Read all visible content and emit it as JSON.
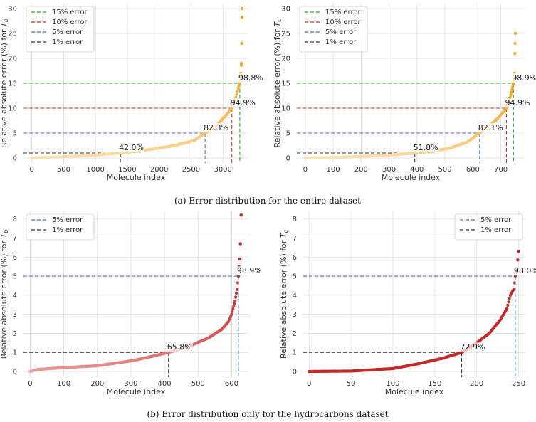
{
  "captions": {
    "a": "(a) Error distribution for the entire dataset",
    "b": "(b) Error distribution only for the hydrocarbons dataset"
  },
  "colors": {
    "err15": "#2ca02c",
    "err10": "#d62728",
    "err5": "#4c72b0",
    "err1": "#333333",
    "grid": "#dcdcdc",
    "orange_dark": "#f5a623",
    "orange_light": "#fbe3b8",
    "red_dark": "#c62828",
    "red_light": "#f1a3a3"
  },
  "chart_data": [
    {
      "id": "a-left",
      "type": "scatter",
      "panel": "top-left",
      "xlabel": "Molecule index",
      "ylabel": "Relative absolute error (%) for T_b",
      "ylabel_parts": [
        "Relative absolute error (%) for ",
        "T",
        "b"
      ],
      "xlim": [
        -130,
        3400
      ],
      "ylim": [
        -1,
        31
      ],
      "xticks": [
        0,
        500,
        1000,
        1500,
        2000,
        2500,
        3000
      ],
      "yticks": [
        0,
        5,
        10,
        15,
        20,
        25,
        30
      ],
      "legend_position": "top-left",
      "legend": [
        "15% error",
        "10% error",
        "5% error",
        "1% error"
      ],
      "series": [
        {
          "color_from": "orange_light",
          "color_to": "orange_dark",
          "n": 3300,
          "points_x": [
            0,
            500,
            1000,
            1390,
            1800,
            2200,
            2550,
            2720,
            2900,
            3050,
            3140,
            3200,
            3240,
            3265,
            3280,
            3290,
            3296,
            3300
          ],
          "points_y": [
            0,
            0.25,
            0.6,
            1.0,
            1.6,
            2.4,
            3.5,
            5.0,
            6.6,
            8.6,
            10.0,
            12.0,
            14.0,
            15.0,
            17.0,
            19.0,
            23.0,
            30.0
          ]
        }
      ],
      "thresholds": [
        {
          "error": 15,
          "x": 3265,
          "label": "98.8%",
          "style": "err15"
        },
        {
          "error": 10,
          "x": 3140,
          "label": "94.9%",
          "style": "err10"
        },
        {
          "error": 5,
          "x": 2720,
          "label": "82.3%",
          "style": "err5"
        },
        {
          "error": 1,
          "x": 1390,
          "label": "42.0%",
          "style": "err1"
        }
      ]
    },
    {
      "id": "a-right",
      "type": "scatter",
      "panel": "top-right",
      "xlabel": "Molecule index",
      "ylabel": "Relative absolute error (%) for T_c",
      "ylabel_parts": [
        "Relative absolute error (%) for ",
        "T",
        "c"
      ],
      "xlim": [
        -30,
        785
      ],
      "ylim": [
        -1,
        31
      ],
      "xticks": [
        0,
        100,
        200,
        300,
        400,
        500,
        600,
        700
      ],
      "yticks": [
        0,
        5,
        10,
        15,
        20,
        25,
        30
      ],
      "legend_position": "top-left",
      "legend": [
        "15% error",
        "10% error",
        "5% error",
        "1% error"
      ],
      "series": [
        {
          "color_from": "orange_light",
          "color_to": "orange_dark",
          "n": 752,
          "points_x": [
            0,
            100,
            200,
            300,
            392,
            450,
            520,
            580,
            624,
            660,
            690,
            720,
            735,
            745,
            748,
            750,
            752
          ],
          "points_y": [
            0,
            0.1,
            0.3,
            0.6,
            1.0,
            1.3,
            2.0,
            3.2,
            5.0,
            6.5,
            8.0,
            10.0,
            12.5,
            15.0,
            17.0,
            21.0,
            25.0
          ]
        }
      ],
      "thresholds": [
        {
          "error": 15,
          "x": 745,
          "label": "98.9%",
          "style": "err15"
        },
        {
          "error": 10,
          "x": 720,
          "label": "94.9%",
          "style": "err10"
        },
        {
          "error": 5,
          "x": 624,
          "label": "82.1%",
          "style": "err5"
        },
        {
          "error": 1,
          "x": 392,
          "label": "51.8%",
          "style": "err1"
        }
      ]
    },
    {
      "id": "b-left",
      "type": "scatter",
      "panel": "bottom-left",
      "xlabel": "Molecule index",
      "ylabel": "Relative absolute error (%) for T_b",
      "ylabel_parts": [
        "Relative absolute error (%) for ",
        "T",
        "b"
      ],
      "xlim": [
        -20,
        650
      ],
      "ylim": [
        -0.3,
        8.4
      ],
      "xticks": [
        0,
        100,
        200,
        300,
        400,
        500,
        600
      ],
      "yticks": [
        0,
        1,
        2,
        3,
        4,
        5,
        6,
        7,
        8
      ],
      "legend_position": "top-left",
      "legend": [
        "5% error",
        "1% error"
      ],
      "series": [
        {
          "color_from": "red_light",
          "color_to": "red_dark",
          "n": 630,
          "points_x": [
            0,
            20,
            100,
            200,
            300,
            360,
            412,
            470,
            530,
            570,
            590,
            600,
            610,
            616,
            620,
            622,
            624,
            626,
            628
          ],
          "points_y": [
            0,
            0.1,
            0.2,
            0.3,
            0.55,
            0.78,
            1.0,
            1.3,
            1.75,
            2.2,
            2.6,
            3.0,
            3.7,
            4.3,
            5.0,
            5.5,
            5.9,
            6.7,
            8.2
          ]
        }
      ],
      "thresholds": [
        {
          "error": 5,
          "x": 620,
          "label": "98.9%",
          "style": "err5"
        },
        {
          "error": 1,
          "x": 412,
          "label": "65.8%",
          "style": "err1"
        }
      ]
    },
    {
      "id": "b-right",
      "type": "scatter",
      "panel": "bottom-right",
      "xlabel": "Molecule index",
      "ylabel": "Relative absolute error (%) for T_c",
      "ylabel_parts": [
        "Relative absolute error (%) for ",
        "T",
        "c"
      ],
      "xlim": [
        -7,
        258
      ],
      "ylim": [
        -0.3,
        8.4
      ],
      "xticks": [
        0,
        50,
        100,
        150,
        200,
        250
      ],
      "yticks": [
        0,
        1,
        2,
        3,
        4,
        5,
        6,
        7,
        8
      ],
      "legend_position": "top-right",
      "legend": [
        "5% error",
        "1% error"
      ],
      "series": [
        {
          "color_from": "red_dark",
          "color_to": "red_dark",
          "n": 250,
          "points_x": [
            0,
            50,
            100,
            130,
            160,
            182,
            200,
            215,
            228,
            236,
            240,
            244,
            246,
            248,
            250
          ],
          "points_y": [
            0,
            0.02,
            0.15,
            0.4,
            0.7,
            1.0,
            1.5,
            2.0,
            2.7,
            3.3,
            4.0,
            4.3,
            5.0,
            5.4,
            6.3
          ]
        }
      ],
      "thresholds": [
        {
          "error": 5,
          "x": 246,
          "label": "98.0%",
          "style": "err5"
        },
        {
          "error": 1,
          "x": 182,
          "label": "72.9%",
          "style": "err1"
        }
      ]
    }
  ]
}
